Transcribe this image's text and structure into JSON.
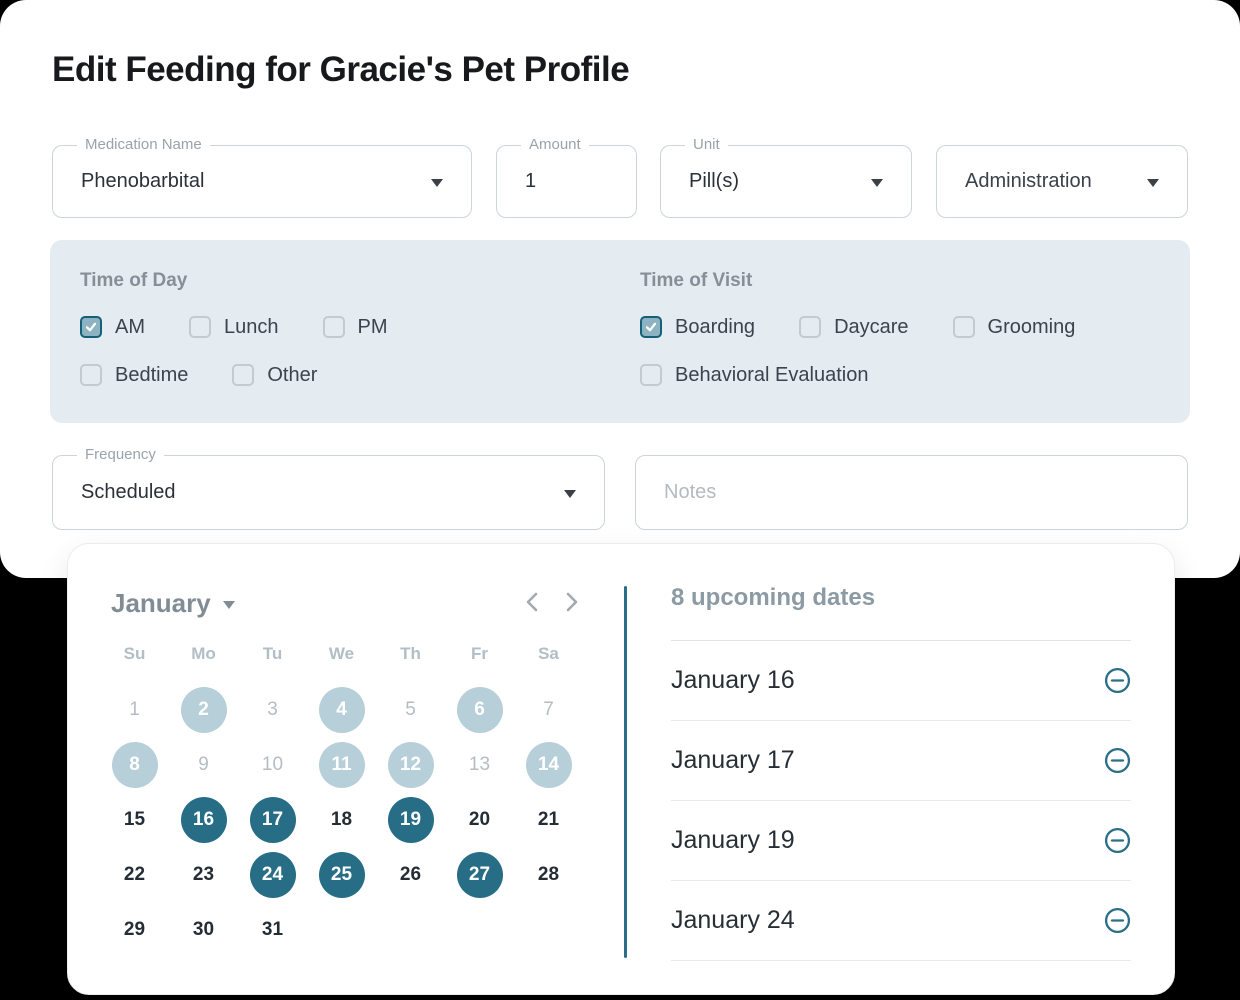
{
  "title": "Edit Feeding for Gracie's Pet Profile",
  "fields": {
    "medication": {
      "label": "Medication Name",
      "value": "Phenobarbital"
    },
    "amount": {
      "label": "Amount",
      "value": "1"
    },
    "unit": {
      "label": "Unit",
      "value": "Pill(s)"
    },
    "administration": {
      "value": "Administration"
    },
    "frequency": {
      "label": "Frequency",
      "value": "Scheduled"
    },
    "notes": {
      "placeholder": "Notes"
    }
  },
  "time_of_day": {
    "title": "Time of Day",
    "rows": [
      [
        {
          "label": "AM",
          "checked": true
        },
        {
          "label": "Lunch",
          "checked": false
        },
        {
          "label": "PM",
          "checked": false
        }
      ],
      [
        {
          "label": "Bedtime",
          "checked": false
        },
        {
          "label": "Other",
          "checked": false
        }
      ]
    ]
  },
  "time_of_visit": {
    "title": "Time of Visit",
    "rows": [
      [
        {
          "label": "Boarding",
          "checked": true
        },
        {
          "label": "Daycare",
          "checked": false
        },
        {
          "label": "Grooming",
          "checked": false
        }
      ],
      [
        {
          "label": "Behavioral Evaluation",
          "checked": false
        }
      ]
    ]
  },
  "calendar": {
    "month": "January",
    "day_headers": [
      "Su",
      "Mo",
      "Tu",
      "We",
      "Th",
      "Fr",
      "Sa"
    ],
    "days": [
      {
        "day": 1,
        "state": "past"
      },
      {
        "day": 2,
        "state": "past-selected"
      },
      {
        "day": 3,
        "state": "past"
      },
      {
        "day": 4,
        "state": "past-selected"
      },
      {
        "day": 5,
        "state": "past"
      },
      {
        "day": 6,
        "state": "past-selected"
      },
      {
        "day": 7,
        "state": "past"
      },
      {
        "day": 8,
        "state": "past-selected"
      },
      {
        "day": 9,
        "state": "past"
      },
      {
        "day": 10,
        "state": "past"
      },
      {
        "day": 11,
        "state": "past-selected"
      },
      {
        "day": 12,
        "state": "past-selected"
      },
      {
        "day": 13,
        "state": "past"
      },
      {
        "day": 14,
        "state": "past-selected"
      },
      {
        "day": 15,
        "state": "future"
      },
      {
        "day": 16,
        "state": "future-selected"
      },
      {
        "day": 17,
        "state": "future-selected"
      },
      {
        "day": 18,
        "state": "future"
      },
      {
        "day": 19,
        "state": "future-selected"
      },
      {
        "day": 20,
        "state": "future"
      },
      {
        "day": 21,
        "state": "future"
      },
      {
        "day": 22,
        "state": "future"
      },
      {
        "day": 23,
        "state": "future"
      },
      {
        "day": 24,
        "state": "future-selected"
      },
      {
        "day": 25,
        "state": "future-selected"
      },
      {
        "day": 26,
        "state": "future"
      },
      {
        "day": 27,
        "state": "future-selected"
      },
      {
        "day": 28,
        "state": "future"
      },
      {
        "day": 29,
        "state": "future"
      },
      {
        "day": 30,
        "state": "future"
      },
      {
        "day": 31,
        "state": "future"
      }
    ]
  },
  "upcoming": {
    "title": "8 upcoming dates",
    "items": [
      {
        "label": "January 16"
      },
      {
        "label": "January 17"
      },
      {
        "label": "January 19"
      },
      {
        "label": "January 24"
      }
    ]
  },
  "icons": {
    "dropdown_caret": "caret-down-icon",
    "prev": "chevron-left-icon",
    "next": "chevron-right-icon",
    "remove": "circle-minus-icon",
    "check": "checkmark-icon"
  },
  "colors": {
    "accent_teal": "#2a6e87",
    "selected_past_circle": "#b7cfd9",
    "section_background": "#e4ecf1",
    "muted_label": "#9aa2aa"
  }
}
